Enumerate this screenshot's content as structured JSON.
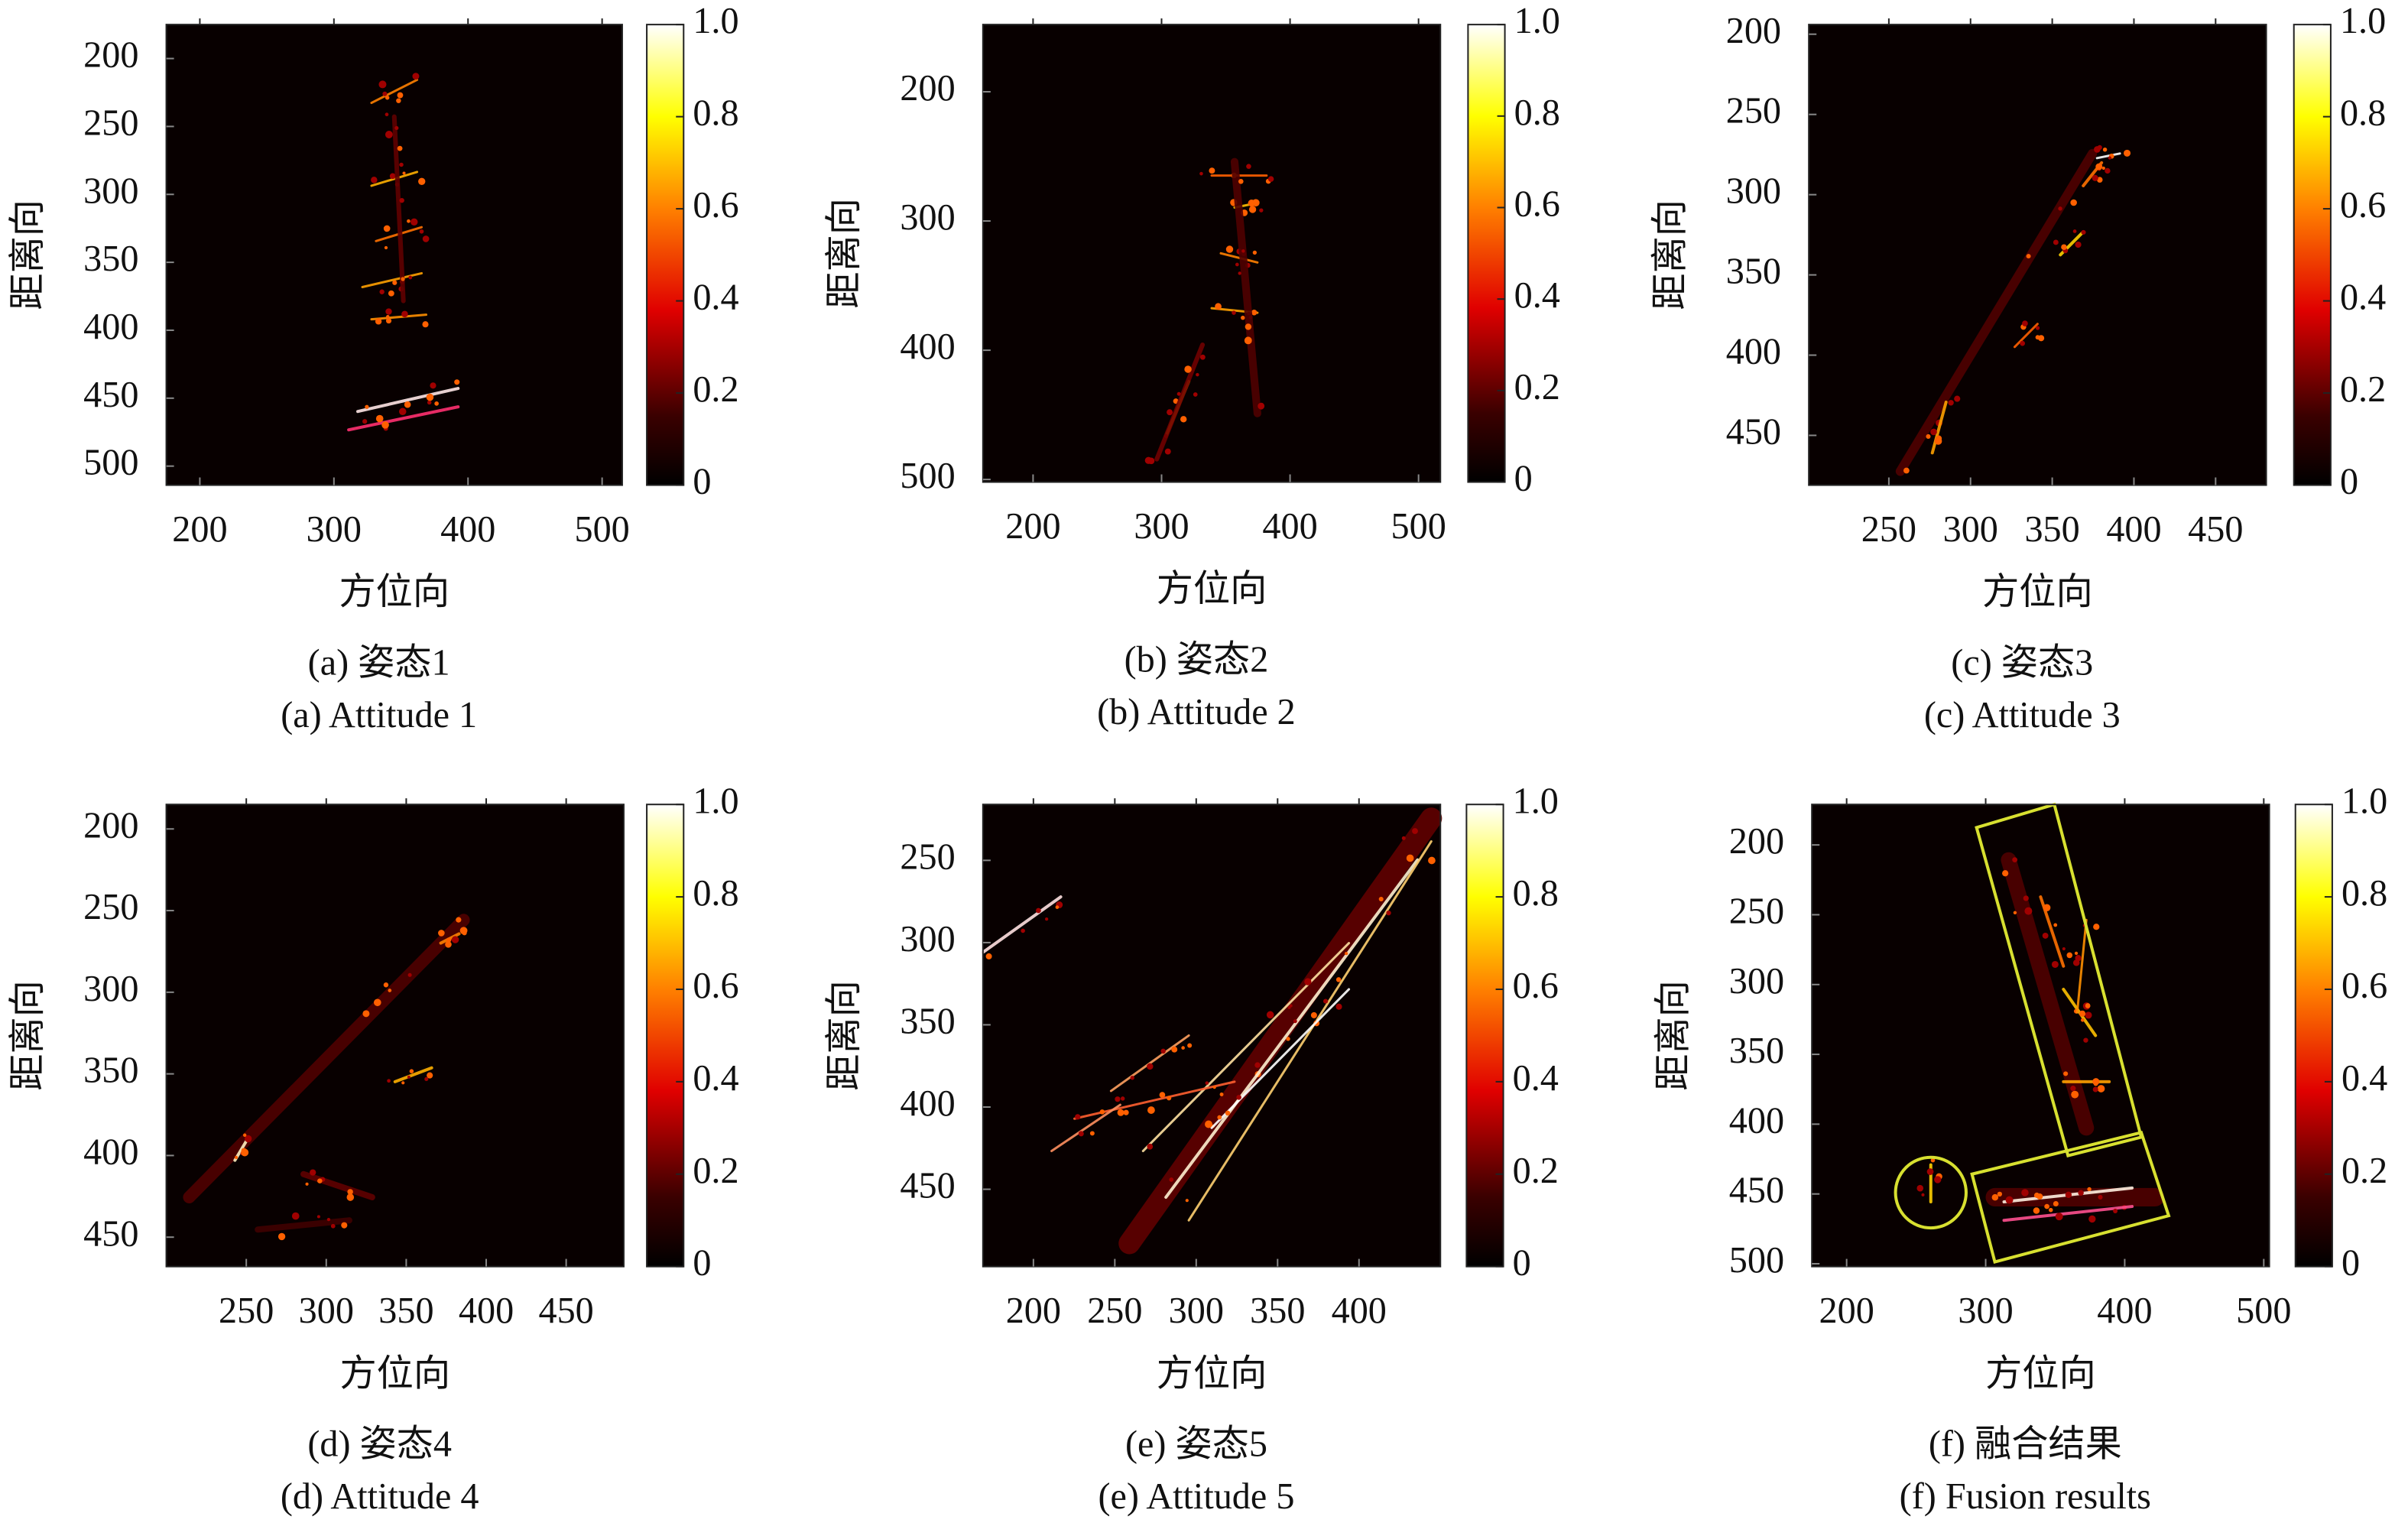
{
  "chart_data": [
    {
      "type": "heatmap",
      "caption": "(a) 姿态1",
      "caption_en": "(a) Attitude 1",
      "xlabel": "方位向",
      "ylabel": "距离向",
      "xlim": [
        175,
        515
      ],
      "ylim": [
        175,
        514
      ],
      "y_reversed": true,
      "xticks": [
        200,
        300,
        400,
        500
      ],
      "yticks": [
        200,
        250,
        300,
        350,
        400,
        450,
        500
      ],
      "colormap": "hot",
      "colorbar": {
        "lim": [
          0,
          1
        ],
        "ticks": [
          {
            "value": 1,
            "label": "1.0"
          },
          0.8,
          0.6,
          0.4,
          0.2,
          0
        ]
      }
    },
    {
      "type": "heatmap",
      "caption": "(b) 姿态2",
      "caption_en": "(b) Attitude 2",
      "xlabel": "方位向",
      "ylabel": "距离向",
      "xlim": [
        161,
        517
      ],
      "ylim": [
        148,
        502
      ],
      "y_reversed": true,
      "xticks": [
        200,
        300,
        400,
        500
      ],
      "yticks": [
        200,
        300,
        400,
        500
      ],
      "colormap": "hot",
      "colorbar": {
        "lim": [
          0,
          1
        ],
        "ticks": [
          {
            "value": 1,
            "label": "1.0"
          },
          0.8,
          0.6,
          0.4,
          0.2,
          0
        ]
      }
    },
    {
      "type": "heatmap",
      "caption": "(c) 姿态3",
      "caption_en": "(c) Attitude 3",
      "xlabel": "方位向",
      "ylabel": "距离向",
      "xlim": [
        201,
        481
      ],
      "ylim": [
        194,
        481
      ],
      "y_reversed": true,
      "xticks": [
        250,
        300,
        350,
        400,
        450
      ],
      "yticks": [
        200,
        250,
        300,
        350,
        400,
        450
      ],
      "colormap": "hot",
      "colorbar": {
        "lim": [
          0,
          1
        ],
        "ticks": [
          {
            "value": 1,
            "label": "1.0"
          },
          0.8,
          0.6,
          0.4,
          0.2,
          0
        ]
      }
    },
    {
      "type": "heatmap",
      "caption": "(d) 姿态4",
      "caption_en": "(d) Attitude 4",
      "xlabel": "方位向",
      "ylabel": "距离向",
      "xlim": [
        200,
        486
      ],
      "ylim": [
        185,
        468
      ],
      "y_reversed": true,
      "xticks": [
        250,
        300,
        350,
        400,
        450
      ],
      "yticks": [
        200,
        250,
        300,
        350,
        400,
        450
      ],
      "colormap": "hot",
      "colorbar": {
        "lim": [
          0,
          1
        ],
        "ticks": [
          {
            "value": 1,
            "label": "1.0"
          },
          0.8,
          0.6,
          0.4,
          0.2,
          0
        ]
      }
    },
    {
      "type": "heatmap",
      "caption": "(e) 姿态5",
      "caption_en": "(e) Attitude 5",
      "xlabel": "方位向",
      "ylabel": "距离向",
      "xlim": [
        169,
        450
      ],
      "ylim": [
        216,
        497
      ],
      "y_reversed": true,
      "xticks": [
        200,
        250,
        300,
        350,
        400
      ],
      "yticks": [
        250,
        300,
        350,
        400,
        450
      ],
      "colormap": "hot",
      "colorbar": {
        "lim": [
          0,
          1
        ],
        "ticks": [
          {
            "value": 1,
            "label": "1.0"
          },
          0.8,
          0.6,
          0.4,
          0.2,
          0
        ]
      }
    },
    {
      "type": "heatmap",
      "caption": "(f) 融合结果",
      "caption_en": "(f) Fusion results",
      "xlabel": "方位向",
      "ylabel": "距离向",
      "xlim": [
        175,
        504
      ],
      "ylim": [
        171,
        502
      ],
      "y_reversed": true,
      "xticks": [
        200,
        300,
        400,
        500
      ],
      "yticks": [
        200,
        250,
        300,
        350,
        400,
        450,
        500
      ],
      "colormap": "hot",
      "colorbar": {
        "lim": [
          0,
          1
        ],
        "ticks": [
          {
            "value": 1,
            "label": "1.0"
          },
          0.8,
          0.6,
          0.4,
          0.2,
          0
        ]
      }
    }
  ]
}
